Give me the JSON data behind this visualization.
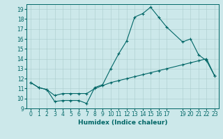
{
  "xlabel": "Humidex (Indice chaleur)",
  "ylabel": "",
  "xlim": [
    -0.5,
    23.5
  ],
  "ylim": [
    9,
    19.5
  ],
  "yticks": [
    9,
    10,
    11,
    12,
    13,
    14,
    15,
    16,
    17,
    18,
    19
  ],
  "xticks": [
    0,
    1,
    2,
    3,
    4,
    5,
    6,
    7,
    8,
    9,
    10,
    11,
    12,
    13,
    14,
    15,
    16,
    17,
    19,
    20,
    21,
    22,
    23
  ],
  "xtick_labels": [
    "0",
    "1",
    "2",
    "3",
    "4",
    "5",
    "6",
    "7",
    "8",
    "9",
    "10",
    "11",
    "12",
    "13",
    "14",
    "15",
    "16",
    "17",
    "19",
    "20",
    "21",
    "22",
    "23"
  ],
  "bg_color": "#cce8ea",
  "line_color": "#006666",
  "grid_color": "#aacccc",
  "line1_x": [
    0,
    1,
    2,
    3,
    4,
    5,
    6,
    7,
    8,
    9,
    10,
    11,
    12,
    13,
    14,
    15,
    16,
    17,
    19,
    20,
    21,
    22,
    23
  ],
  "line1_y": [
    11.6,
    11.1,
    10.9,
    9.7,
    9.8,
    9.8,
    9.8,
    9.5,
    11.1,
    11.4,
    13.0,
    14.5,
    15.8,
    18.2,
    18.55,
    19.2,
    18.2,
    17.2,
    15.7,
    16.0,
    14.4,
    13.8,
    12.3
  ],
  "line2_x": [
    0,
    1,
    2,
    3,
    4,
    5,
    6,
    7,
    8,
    9,
    10,
    11,
    12,
    13,
    14,
    15,
    16,
    17,
    19,
    20,
    21,
    22,
    23
  ],
  "line2_y": [
    11.6,
    11.1,
    10.9,
    10.3,
    10.5,
    10.5,
    10.5,
    10.5,
    11.0,
    11.3,
    11.6,
    11.8,
    12.0,
    12.2,
    12.4,
    12.6,
    12.8,
    13.0,
    13.4,
    13.6,
    13.8,
    14.0,
    12.3
  ],
  "marker": "+",
  "markersize": 3,
  "linewidth": 0.8,
  "label_fontsize": 6.5,
  "tick_fontsize": 5.5
}
